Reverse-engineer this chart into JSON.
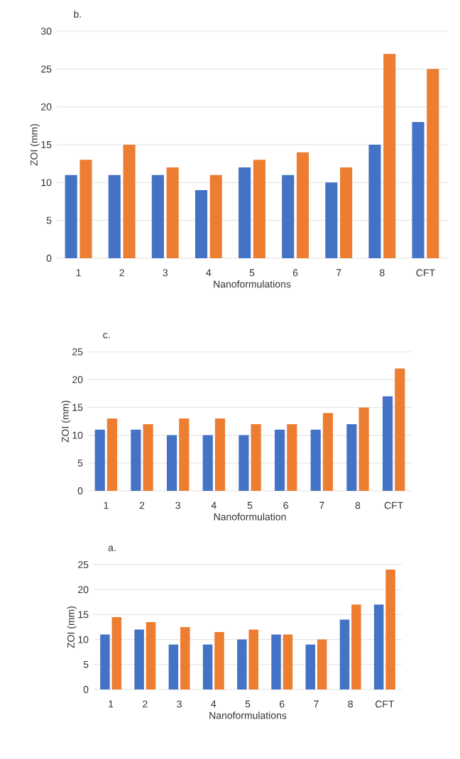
{
  "chart_data": [
    {
      "type": "bar",
      "title": "b.",
      "xlabel": "Nanoformulations",
      "ylabel": "ZOI (mm)",
      "categories": [
        "1",
        "2",
        "3",
        "4",
        "5",
        "6",
        "7",
        "8",
        "CFT"
      ],
      "series": [
        {
          "color": "#4472c4",
          "values": [
            11,
            11,
            11,
            9,
            12,
            11,
            10,
            15,
            18
          ]
        },
        {
          "color": "#ed7d31",
          "values": [
            13,
            15,
            12,
            11,
            13,
            14,
            12,
            27,
            25
          ]
        }
      ],
      "ylim": [
        0,
        30
      ],
      "yticks": [
        0,
        5,
        10,
        15,
        20,
        25,
        30
      ],
      "grid": "y"
    },
    {
      "type": "bar",
      "title": "c.",
      "xlabel": "Nanoformulation",
      "ylabel": "ZOI (mm)",
      "categories": [
        "1",
        "2",
        "3",
        "4",
        "5",
        "6",
        "7",
        "8",
        "CFT"
      ],
      "series": [
        {
          "color": "#4472c4",
          "values": [
            11,
            11,
            10,
            10,
            10,
            11,
            11,
            12,
            17
          ]
        },
        {
          "color": "#ed7d31",
          "values": [
            13,
            12,
            13,
            13,
            12,
            12,
            14,
            15,
            22
          ]
        }
      ],
      "ylim": [
        0,
        25
      ],
      "yticks": [
        0,
        5,
        10,
        15,
        20,
        25
      ],
      "grid": "y"
    },
    {
      "type": "bar",
      "title": "a.",
      "xlabel": "Nanoformulations",
      "ylabel": "ZOI (mm)",
      "categories": [
        "1",
        "2",
        "3",
        "4",
        "5",
        "6",
        "7",
        "8",
        "CFT"
      ],
      "series": [
        {
          "color": "#4472c4",
          "values": [
            11,
            12,
            9,
            9,
            10,
            11,
            9,
            14,
            17
          ]
        },
        {
          "color": "#ed7d31",
          "values": [
            14.5,
            13.5,
            12.5,
            11.5,
            12,
            11,
            10,
            17,
            24
          ]
        }
      ],
      "ylim": [
        0,
        25
      ],
      "yticks": [
        0,
        5,
        10,
        15,
        20,
        25
      ],
      "grid": "y"
    }
  ]
}
